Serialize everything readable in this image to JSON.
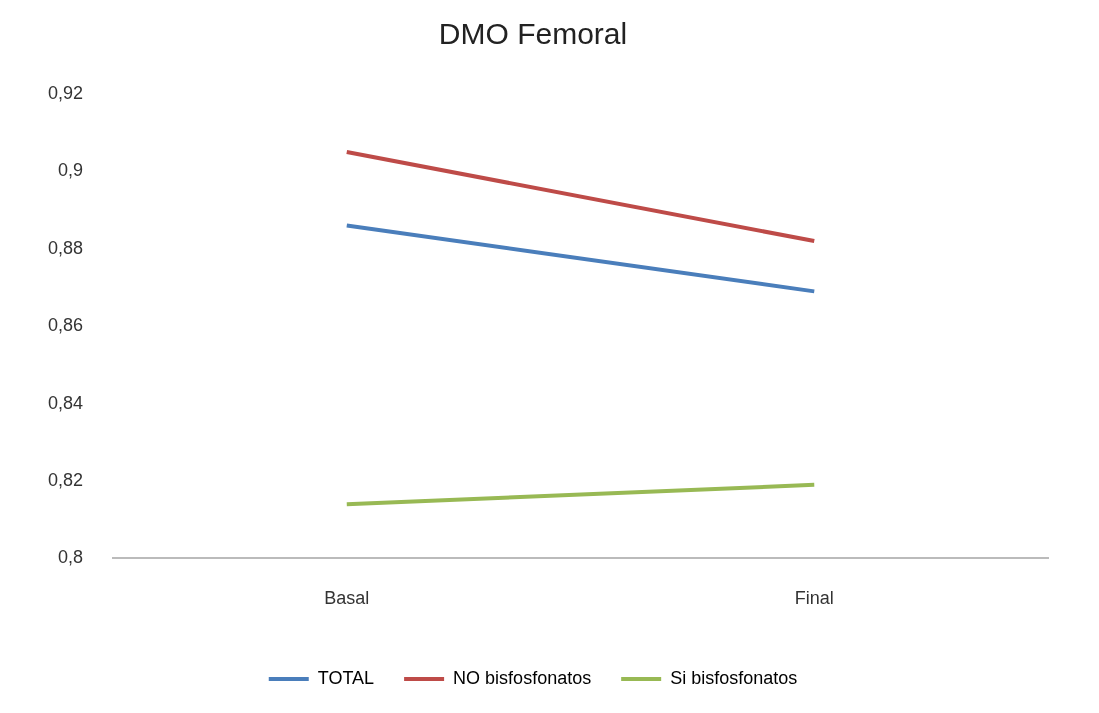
{
  "chart_data": {
    "type": "line",
    "title": "DMO Femoral",
    "categories": [
      "Basal",
      "Final"
    ],
    "series": [
      {
        "name": "TOTAL",
        "color": "#4a7ebb",
        "values": [
          0.886,
          0.869
        ]
      },
      {
        "name": "NO bisfosfonatos",
        "color": "#be4b48",
        "values": [
          0.905,
          0.882
        ]
      },
      {
        "name": "Si bisfosfonatos",
        "color": "#98b954",
        "values": [
          0.814,
          0.819
        ]
      }
    ],
    "ylim": [
      0.8,
      0.92
    ],
    "yticks": [
      {
        "value": 0.8,
        "label": "0,8"
      },
      {
        "value": 0.82,
        "label": "0,82"
      },
      {
        "value": 0.84,
        "label": "0,84"
      },
      {
        "value": 0.86,
        "label": "0,86"
      },
      {
        "value": 0.88,
        "label": "0,88"
      },
      {
        "value": 0.9,
        "label": "0,9"
      },
      {
        "value": 0.92,
        "label": "0,92"
      }
    ],
    "grid": false,
    "legend": "bottom",
    "marker": "none",
    "line_style": "solid"
  }
}
